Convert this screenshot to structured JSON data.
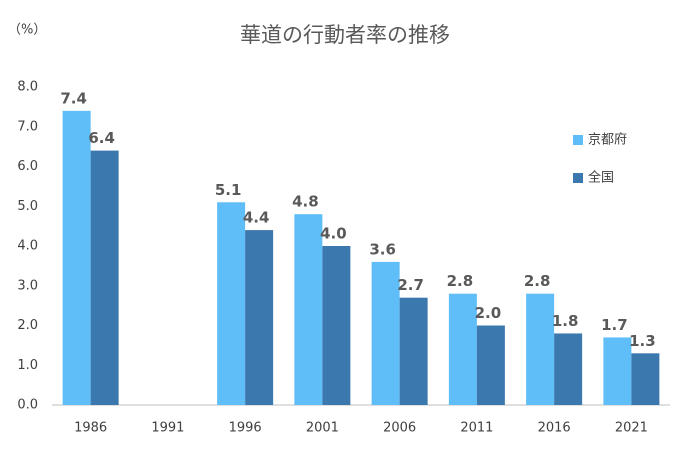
{
  "chart_data": {
    "type": "bar",
    "title": "華道の行動者率の推移",
    "y_unit": "（%）",
    "categories": [
      "1986",
      "1991",
      "1996",
      "2001",
      "2006",
      "2011",
      "2016",
      "2021"
    ],
    "series": [
      {
        "name": "京都府",
        "color": "#5fbdf7",
        "values": [
          7.4,
          null,
          5.1,
          4.8,
          3.6,
          2.8,
          2.8,
          1.7
        ],
        "value_labels": [
          "7.4",
          null,
          "5.1",
          "4.8",
          "3.6",
          "2.8",
          "2.8",
          "1.7"
        ]
      },
      {
        "name": "全国",
        "color": "#3b78ad",
        "values": [
          6.4,
          null,
          4.4,
          4.0,
          2.7,
          2.0,
          1.8,
          1.3
        ],
        "value_labels": [
          "6.4",
          null,
          "4.4",
          "4.0",
          "2.7",
          "2.0",
          "1.8",
          "1.3"
        ]
      }
    ],
    "ylim": [
      0,
      8
    ],
    "yticks": [
      {
        "value": 0,
        "label": "0.0"
      },
      {
        "value": 1,
        "label": "1.0"
      },
      {
        "value": 2,
        "label": "2.0"
      },
      {
        "value": 3,
        "label": "3.0"
      },
      {
        "value": 4,
        "label": "4.0"
      },
      {
        "value": 5,
        "label": "5.0"
      },
      {
        "value": 6,
        "label": "6.0"
      },
      {
        "value": 7,
        "label": "7.0"
      },
      {
        "value": 8,
        "label": "8.0"
      }
    ],
    "grid": false,
    "legend": "right"
  }
}
